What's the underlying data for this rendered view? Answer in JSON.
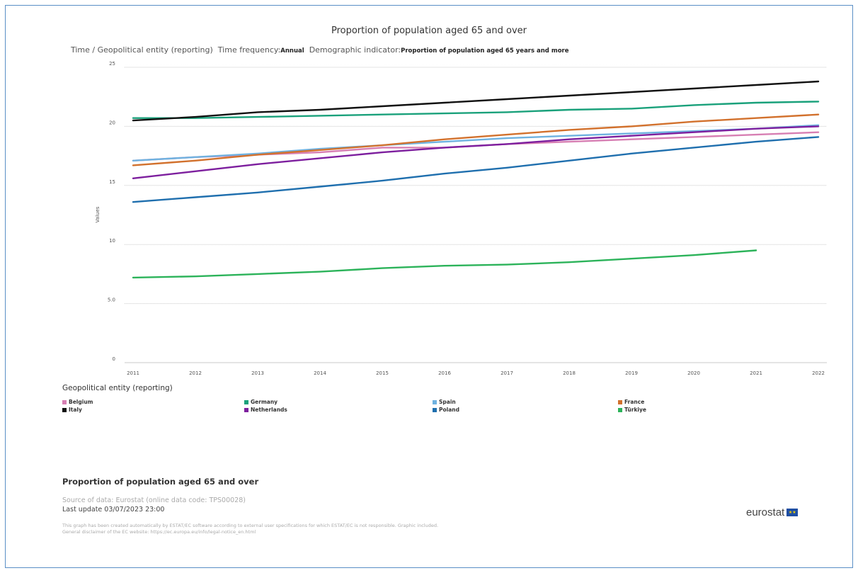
{
  "chart_data": {
    "type": "line",
    "title": "Proportion of population aged 65 and over",
    "subtitle": {
      "part1": "Time / Geopolitical entity (reporting)",
      "freq_label": "Time frequency:",
      "freq_value": "Annual",
      "ind_label": "Demographic indicator:",
      "ind_value": "Proportion of population aged 65 years and more"
    },
    "xlabel": "",
    "ylabel": "Values",
    "x": [
      "2011",
      "2012",
      "2013",
      "2014",
      "2015",
      "2016",
      "2017",
      "2018",
      "2019",
      "2020",
      "2021",
      "2022"
    ],
    "ylim": [
      0,
      25
    ],
    "yticks": [
      0,
      5,
      10,
      15,
      20,
      25
    ],
    "ytick_labels": [
      "0",
      "5.0",
      "10",
      "15",
      "20",
      "25"
    ],
    "grid": true,
    "legend_title": "Geopolitical entity (reporting)",
    "legend_position": "bottom",
    "series": [
      {
        "name": "Belgium",
        "color": "#d77fb3",
        "values": [
          17.1,
          17.4,
          17.6,
          17.8,
          18.2,
          18.2,
          18.5,
          18.7,
          18.9,
          19.1,
          19.3,
          19.5
        ]
      },
      {
        "name": "Germany",
        "color": "#1aa17b",
        "values": [
          20.7,
          20.7,
          20.8,
          20.9,
          21.0,
          21.1,
          21.2,
          21.4,
          21.5,
          21.8,
          22.0,
          22.1
        ]
      },
      {
        "name": "Spain",
        "color": "#6fb2e0",
        "values": [
          17.1,
          17.4,
          17.7,
          18.1,
          18.4,
          18.7,
          19.0,
          19.2,
          19.4,
          19.6,
          19.8,
          20.1
        ]
      },
      {
        "name": "France",
        "color": "#d2712d",
        "values": [
          16.7,
          17.1,
          17.6,
          18.0,
          18.4,
          18.9,
          19.3,
          19.7,
          20.0,
          20.4,
          20.7,
          21.0
        ]
      },
      {
        "name": "Italy",
        "color": "#111111",
        "values": [
          20.5,
          20.8,
          21.2,
          21.4,
          21.7,
          22.0,
          22.3,
          22.6,
          22.9,
          23.2,
          23.5,
          23.8
        ]
      },
      {
        "name": "Netherlands",
        "color": "#7d1f9e",
        "values": [
          15.6,
          16.2,
          16.8,
          17.3,
          17.8,
          18.2,
          18.5,
          18.9,
          19.2,
          19.5,
          19.8,
          20.0
        ]
      },
      {
        "name": "Poland",
        "color": "#1f6fae",
        "values": [
          13.6,
          14.0,
          14.4,
          14.9,
          15.4,
          16.0,
          16.5,
          17.1,
          17.7,
          18.2,
          18.7,
          19.1
        ]
      },
      {
        "name": "Türkiye",
        "color": "#2cb35a",
        "values": [
          7.2,
          7.3,
          7.5,
          7.7,
          8.0,
          8.2,
          8.3,
          8.5,
          8.8,
          9.1,
          9.5,
          null
        ]
      }
    ]
  },
  "footer": {
    "title": "Proportion of population aged 65 and over",
    "source": "Source of data: Eurostat (online data code: TPS00028)",
    "updated": "Last update 03/07/2023 23:00",
    "note1": "This graph has been created automatically by ESTAT/EC software according to external user specifications for which ESTAT/EC is not responsible. Graphic included.",
    "note2": "General disclaimer of the EC website: https://ec.europa.eu/info/legal-notice_en.html",
    "logo_text": "eurostat"
  }
}
